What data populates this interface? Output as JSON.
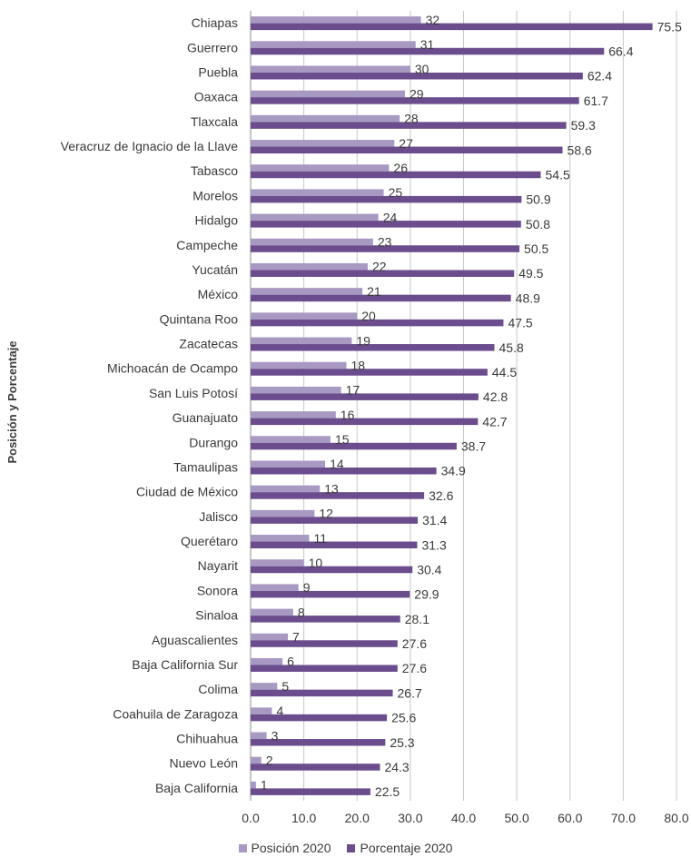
{
  "chart_data": {
    "type": "bar",
    "orientation": "horizontal",
    "ylabel": "Posición y Porcentaje",
    "xlabel": "",
    "xlim": [
      0,
      80
    ],
    "xticks": [
      0,
      10,
      20,
      30,
      40,
      50,
      60,
      70,
      80
    ],
    "xtick_labels": [
      "0.0",
      "10.0",
      "20.0",
      "30.0",
      "40.0",
      "50.0",
      "60.0",
      "70.0",
      "80.0"
    ],
    "grid": "vertical",
    "legend_position": "bottom",
    "categories": [
      "Chiapas",
      "Guerrero",
      "Puebla",
      "Oaxaca",
      "Tlaxcala",
      "Veracruz de Ignacio de la Llave",
      "Tabasco",
      "Morelos",
      "Hidalgo",
      "Campeche",
      "Yucatán",
      "México",
      "Quintana Roo",
      "Zacatecas",
      "Michoacán de Ocampo",
      "San Luis Potosí",
      "Guanajuato",
      "Durango",
      "Tamaulipas",
      "Ciudad de México",
      "Jalisco",
      "Querétaro",
      "Nayarit",
      "Sonora",
      "Sinaloa",
      "Aguascalientes",
      "Baja California Sur",
      "Colima",
      "Coahuila de Zaragoza",
      "Chihuahua",
      "Nuevo León",
      "Baja California"
    ],
    "series": [
      {
        "name": "Posición 2020",
        "color": "#a899c2",
        "values": [
          32,
          31,
          30,
          29,
          28,
          27,
          26,
          25,
          24,
          23,
          22,
          21,
          20,
          19,
          18,
          17,
          16,
          15,
          14,
          13,
          12,
          11,
          10,
          9,
          8,
          7,
          6,
          5,
          4,
          3,
          2,
          1
        ],
        "labels": [
          "32",
          "31",
          "30",
          "29",
          "28",
          "27",
          "26",
          "25",
          "24",
          "23",
          "22",
          "21",
          "20",
          "19",
          "18",
          "17",
          "16",
          "15",
          "14",
          "13",
          "12",
          "11",
          "10",
          "9",
          "8",
          "7",
          "6",
          "5",
          "4",
          "3",
          "2",
          "1"
        ]
      },
      {
        "name": "Porcentaje 2020",
        "color": "#6b4d8e",
        "values": [
          75.5,
          66.4,
          62.4,
          61.7,
          59.3,
          58.6,
          54.5,
          50.9,
          50.8,
          50.5,
          49.5,
          48.9,
          47.5,
          45.8,
          44.5,
          42.8,
          42.7,
          38.7,
          34.9,
          32.6,
          31.4,
          31.3,
          30.4,
          29.9,
          28.1,
          27.6,
          27.6,
          26.7,
          25.6,
          25.3,
          24.3,
          22.5
        ],
        "labels": [
          "75.5",
          "66.4",
          "62.4",
          "61.7",
          "59.3",
          "58.6",
          "54.5",
          "50.9",
          "50.8",
          "50.5",
          "49.5",
          "48.9",
          "47.5",
          "45.8",
          "44.5",
          "42.8",
          "42.7",
          "38.7",
          "34.9",
          "32.6",
          "31.4",
          "31.3",
          "30.4",
          "29.9",
          "28.1",
          "27.6",
          "27.6",
          "26.7",
          "25.6",
          "25.3",
          "24.3",
          "22.5"
        ]
      }
    ]
  }
}
